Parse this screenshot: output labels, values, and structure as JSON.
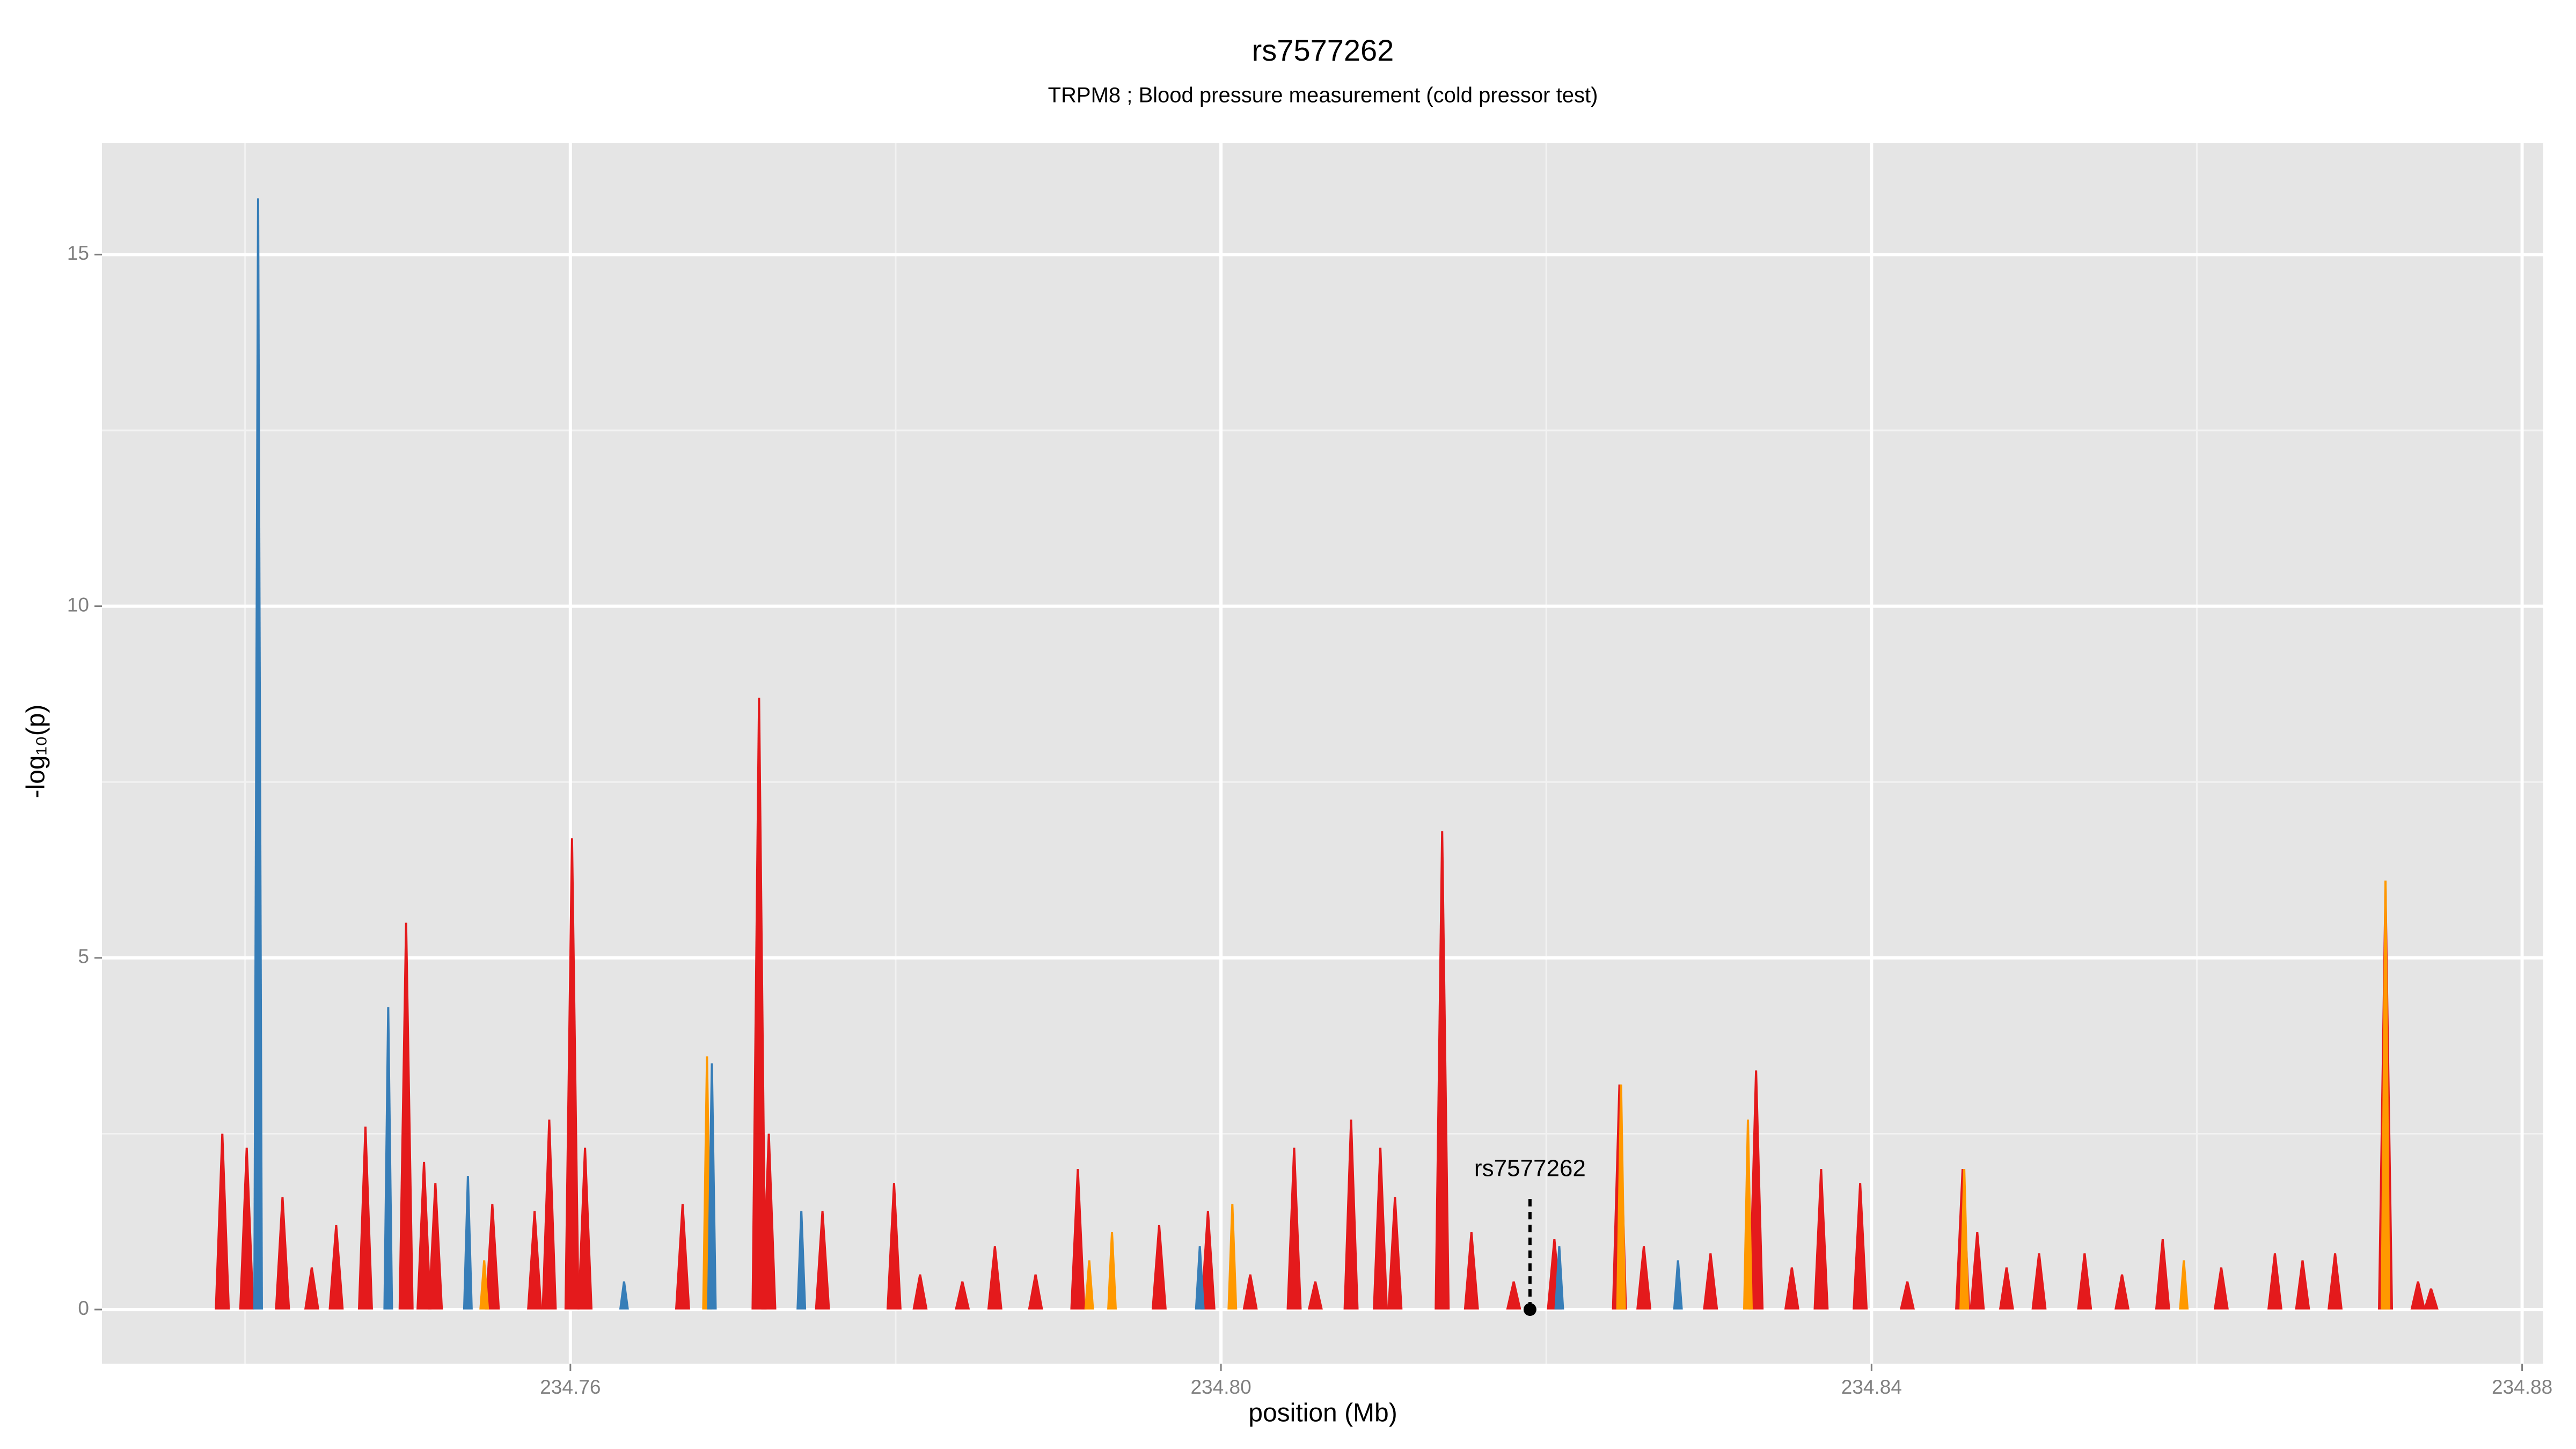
{
  "chart_data": {
    "type": "area",
    "title": "rs7577262",
    "subtitle": "TRPM8 ; Blood pressure measurement (cold pressor test)",
    "xlabel": "position (Mb)",
    "ylabel": "-log₁₀(p)",
    "xlim": [
      234.7312,
      234.8813
    ],
    "ylim": [
      -0.77,
      16.59
    ],
    "xticks": [
      234.76,
      {
        "value": 234.8,
        "label": "234.80"
      },
      234.84,
      234.88
    ],
    "yticks": [
      0,
      5,
      10,
      15
    ],
    "x_minor_grid": [
      234.74,
      234.78,
      234.82,
      234.86
    ],
    "y_minor_grid": [
      2.5,
      7.5,
      12.5
    ],
    "grid": true,
    "series": [
      {
        "color": "#e41a1c",
        "x": [
          234.7386,
          234.7401,
          234.7423,
          234.7456,
          234.7474,
          234.7499,
          234.751,
          234.7517,
          234.7552,
          234.7578,
          234.7587,
          234.7601,
          234.7609,
          234.7669,
          234.7716,
          234.7722,
          234.7755,
          234.7799,
          234.7861,
          234.7912,
          234.7962,
          234.7992,
          234.8045,
          234.808,
          234.8098,
          234.8107,
          234.8136,
          234.8154,
          234.8205,
          234.8245,
          234.826,
          234.8329,
          234.8369,
          234.8393,
          234.8456,
          234.8465,
          234.8503,
          234.8531,
          234.8579,
          234.8648,
          234.8685,
          234.8716,
          234.8744,
          234.7441,
          234.7815,
          234.7841,
          234.7886,
          234.8018,
          234.8058,
          234.818,
          234.8301,
          234.8351,
          234.8422,
          234.8483,
          234.8554,
          234.8615,
          234.8665,
          234.8736
        ],
        "values": [
          2.5,
          2.3,
          1.6,
          1.2,
          2.6,
          5.5,
          2.1,
          1.8,
          1.5,
          1.4,
          2.7,
          6.7,
          2.3,
          1.5,
          8.7,
          2.5,
          1.4,
          1.8,
          0.9,
          2.0,
          1.2,
          1.4,
          2.3,
          2.7,
          2.3,
          1.6,
          6.8,
          1.1,
          1.0,
          3.2,
          0.9,
          3.4,
          2.0,
          1.8,
          2.0,
          1.1,
          0.8,
          0.8,
          1.0,
          0.8,
          0.8,
          6.0,
          0.3,
          0.6,
          0.5,
          0.4,
          0.5,
          0.5,
          0.4,
          0.4,
          0.8,
          0.6,
          0.4,
          0.6,
          0.5,
          0.6,
          0.7,
          0.4
        ]
      },
      {
        "color": "#ff9900",
        "x": [
          234.7684,
          234.7933,
          234.8007,
          234.8246,
          234.8324,
          234.8457,
          234.8716,
          234.8592,
          234.7547,
          234.7919
        ],
        "values": [
          3.6,
          1.1,
          1.5,
          3.2,
          2.7,
          2.0,
          6.1,
          0.7,
          0.7,
          0.7
        ]
      },
      {
        "color": "#377eb8",
        "x": [
          234.7408,
          234.7488,
          234.7537,
          234.7687,
          234.7742,
          234.7633,
          234.7987,
          234.8208,
          234.8281
        ],
        "values": [
          15.8,
          4.3,
          1.9,
          3.5,
          1.4,
          0.4,
          0.9,
          0.9,
          0.7
        ]
      }
    ],
    "annotations": [
      {
        "text": "rs7577262",
        "x": 234.819,
        "y": 0
      }
    ]
  }
}
